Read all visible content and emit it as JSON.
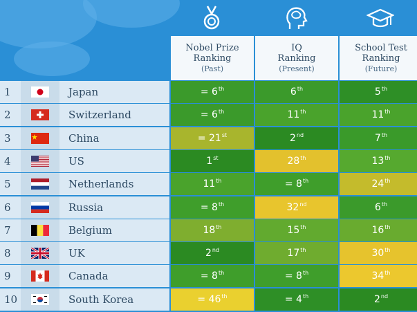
{
  "chart_data": {
    "type": "table",
    "columns": [
      {
        "title": "Nobel Prize Ranking",
        "subtitle": "(Past)",
        "icon": "medal-icon"
      },
      {
        "title": "IQ Ranking",
        "subtitle": "(Present)",
        "icon": "brain-head-icon"
      },
      {
        "title": "School Test Ranking",
        "subtitle": "(Future)",
        "icon": "graduation-cap-icon"
      }
    ],
    "rows": [
      {
        "rank": "1",
        "country": "Japan",
        "flag": "jp",
        "values": [
          {
            "eq": "= ",
            "num": "6",
            "suf": "th",
            "color": "#3b9a2b"
          },
          {
            "eq": "",
            "num": "6",
            "suf": "th",
            "color": "#3b9a2b"
          },
          {
            "eq": "",
            "num": "5",
            "suf": "th",
            "color": "#2e8f26"
          }
        ]
      },
      {
        "rank": "2",
        "country": "Switzerland",
        "flag": "ch",
        "values": [
          {
            "eq": "= ",
            "num": "6",
            "suf": "th",
            "color": "#3b9a2b"
          },
          {
            "eq": "",
            "num": "11",
            "suf": "th",
            "color": "#4aa32c"
          },
          {
            "eq": "",
            "num": "11",
            "suf": "th",
            "color": "#4aa32c"
          }
        ]
      },
      {
        "rank": "3",
        "country": "China",
        "flag": "cn",
        "values": [
          {
            "eq": "= ",
            "num": "21",
            "suf": "st",
            "color": "#a8b52d"
          },
          {
            "eq": "",
            "num": "2",
            "suf": "nd",
            "color": "#2b8a22"
          },
          {
            "eq": "",
            "num": "7",
            "suf": "th",
            "color": "#3a9a2a"
          }
        ]
      },
      {
        "rank": "4",
        "country": "US",
        "flag": "us",
        "values": [
          {
            "eq": "",
            "num": "1",
            "suf": "st",
            "color": "#2b8a22"
          },
          {
            "eq": "",
            "num": "28",
            "suf": "th",
            "color": "#e3c12d"
          },
          {
            "eq": "",
            "num": "13",
            "suf": "th",
            "color": "#56a92f"
          }
        ]
      },
      {
        "rank": "5",
        "country": "Netherlands",
        "flag": "nl",
        "values": [
          {
            "eq": "",
            "num": "11",
            "suf": "th",
            "color": "#4aa32c"
          },
          {
            "eq": "= ",
            "num": "8",
            "suf": "th",
            "color": "#3f9e2b"
          },
          {
            "eq": "",
            "num": "24",
            "suf": "th",
            "color": "#c4bb2c"
          }
        ]
      },
      {
        "rank": "6",
        "country": "Russia",
        "flag": "ru",
        "values": [
          {
            "eq": "= ",
            "num": "8",
            "suf": "th",
            "color": "#3f9e2b"
          },
          {
            "eq": "",
            "num": "32",
            "suf": "nd",
            "color": "#e8c52d"
          },
          {
            "eq": "",
            "num": "6",
            "suf": "th",
            "color": "#3b9a2b"
          }
        ]
      },
      {
        "rank": "7",
        "country": "Belgium",
        "flag": "be",
        "values": [
          {
            "eq": "",
            "num": "18",
            "suf": "th",
            "color": "#7fae2f"
          },
          {
            "eq": "",
            "num": "15",
            "suf": "th",
            "color": "#62aa2f"
          },
          {
            "eq": "",
            "num": "16",
            "suf": "th",
            "color": "#69ab2f"
          }
        ]
      },
      {
        "rank": "8",
        "country": "UK",
        "flag": "uk",
        "values": [
          {
            "eq": "",
            "num": "2",
            "suf": "nd",
            "color": "#2b8a22"
          },
          {
            "eq": "",
            "num": "17",
            "suf": "th",
            "color": "#6fac2f"
          },
          {
            "eq": "",
            "num": "30",
            "suf": "th",
            "color": "#e6c32d"
          }
        ]
      },
      {
        "rank": "9",
        "country": "Canada",
        "flag": "ca",
        "values": [
          {
            "eq": "= ",
            "num": "8",
            "suf": "th",
            "color": "#3f9e2b"
          },
          {
            "eq": "= ",
            "num": "8",
            "suf": "th",
            "color": "#3f9e2b"
          },
          {
            "eq": "",
            "num": "34",
            "suf": "th",
            "color": "#ecc82e"
          }
        ]
      },
      {
        "rank": "10",
        "country": "South Korea",
        "flag": "kr",
        "values": [
          {
            "eq": "= ",
            "num": "46",
            "suf": "th",
            "color": "#ead02f"
          },
          {
            "eq": "= ",
            "num": "4",
            "suf": "th",
            "color": "#2e8f26"
          },
          {
            "eq": "",
            "num": "2",
            "suf": "nd",
            "color": "#2b8a22"
          }
        ]
      }
    ]
  }
}
